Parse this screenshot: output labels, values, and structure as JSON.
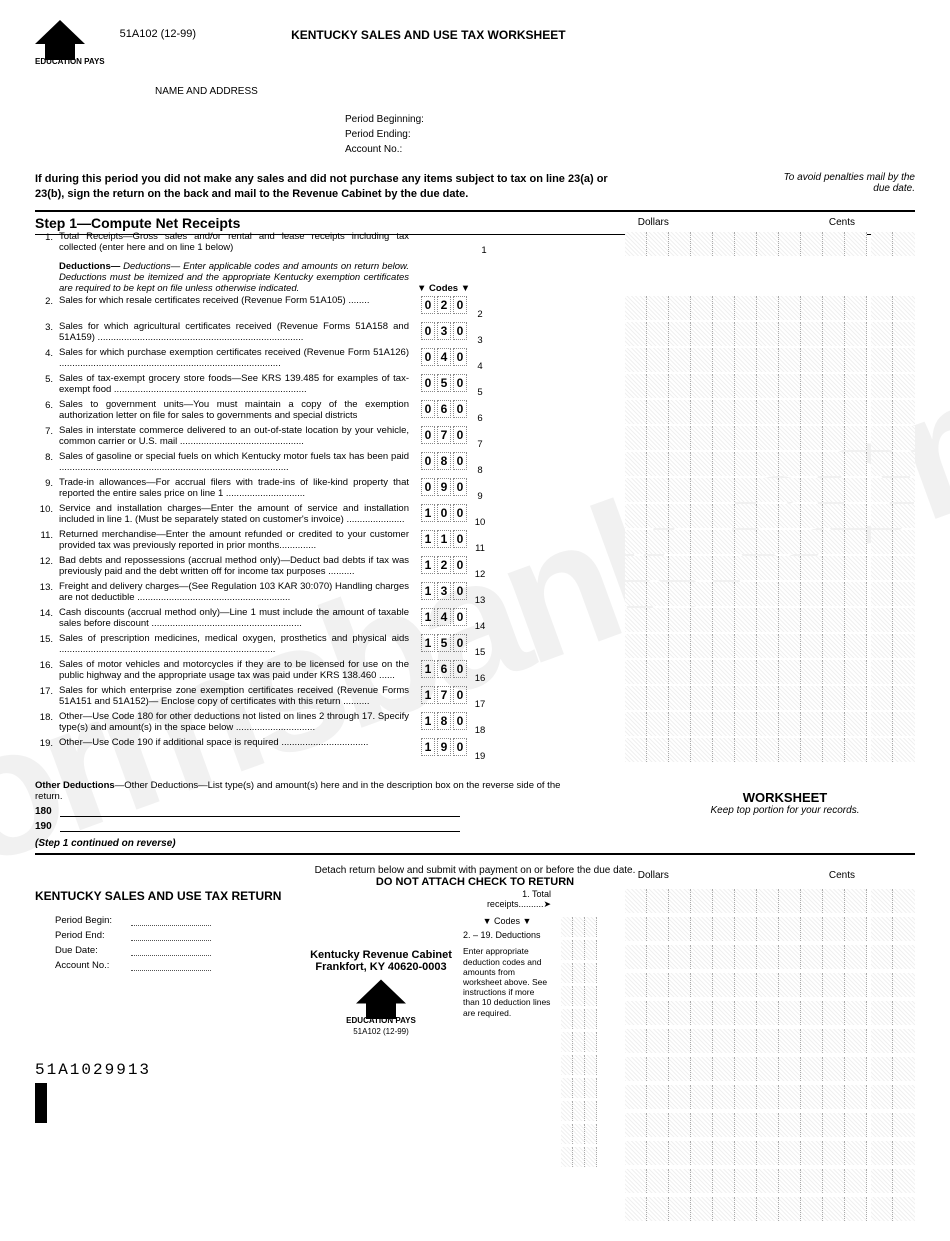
{
  "form_id": "51A102 (12-99)",
  "title": "KENTUCKY SALES AND USE TAX WORKSHEET",
  "logo_sub": "EDUCATION PAYS",
  "name_address": "NAME AND ADDRESS",
  "period_beginning": "Period Beginning:",
  "period_ending": "Period Ending:",
  "account_no": "Account No.:",
  "notice": "If during this period you did not make any sales and did not purchase any items subject to tax on line 23(a) or 23(b), sign the return on the back and mail to the Revenue Cabinet by the due date.",
  "avoid": "To avoid penalties mail by the due date.",
  "step1_header": "Step 1—Compute Net Receipts",
  "dollars": "Dollars",
  "cents": "Cents",
  "line1": {
    "num": "1.",
    "text": "Total Receipts—Gross sales and/or rental and lease receipts including tax collected (enter here and on line 1 below)",
    "rnum": "1"
  },
  "deductions_intro": "Deductions— Enter applicable codes and amounts on return below. Deductions must be itemized and the appropriate Kentucky exemption certificates are required to be kept on file unless otherwise indicated.",
  "codes_label": "▼ Codes ▼",
  "lines": [
    {
      "num": "2.",
      "text": "Sales for which resale certificates received (Revenue Form 51A105) ........",
      "code": [
        "0",
        "2",
        "0"
      ],
      "rnum": "2"
    },
    {
      "num": "3.",
      "text": "Sales for which agricultural certificates received (Revenue Forms 51A158 and 51A159) ..............................................................................",
      "code": [
        "0",
        "3",
        "0"
      ],
      "rnum": "3"
    },
    {
      "num": "4.",
      "text": "Sales for which purchase exemption certificates received (Revenue Form 51A126) ....................................................................................",
      "code": [
        "0",
        "4",
        "0"
      ],
      "rnum": "4"
    },
    {
      "num": "5.",
      "text": "Sales of tax-exempt grocery store foods—See KRS 139.485 for examples of tax-exempt food .........................................................................",
      "code": [
        "0",
        "5",
        "0"
      ],
      "rnum": "5"
    },
    {
      "num": "6.",
      "text": "Sales to government units—You must maintain a copy of the exemption authorization letter on file for sales to governments and special districts",
      "code": [
        "0",
        "6",
        "0"
      ],
      "rnum": "6"
    },
    {
      "num": "7.",
      "text": "Sales in interstate commerce delivered to an out-of-state location by your vehicle, common carrier or U.S. mail ...............................................",
      "code": [
        "0",
        "7",
        "0"
      ],
      "rnum": "7"
    },
    {
      "num": "8.",
      "text": "Sales of gasoline or special fuels on which Kentucky motor fuels tax has been paid .......................................................................................",
      "code": [
        "0",
        "8",
        "0"
      ],
      "rnum": "8"
    },
    {
      "num": "9.",
      "text": "Trade-in allowances—For accrual filers with trade-ins of like-kind property that reported the entire sales price on line 1 ..............................",
      "code": [
        "0",
        "9",
        "0"
      ],
      "rnum": "9"
    },
    {
      "num": "10.",
      "text": "Service and installation charges—Enter the amount of service and installation included in line 1. (Must be separately stated on customer's invoice) ......................",
      "code": [
        "1",
        "0",
        "0"
      ],
      "rnum": "10"
    },
    {
      "num": "11.",
      "text": "Returned merchandise—Enter the amount refunded or credited to your customer provided tax was previously reported in prior months..............",
      "code": [
        "1",
        "1",
        "0"
      ],
      "rnum": "11"
    },
    {
      "num": "12.",
      "text": "Bad debts and repossessions (accrual method only)—Deduct bad debts if tax was previously paid and the debt written off for income tax purposes ..........",
      "code": [
        "1",
        "2",
        "0"
      ],
      "rnum": "12"
    },
    {
      "num": "13.",
      "text": "Freight and delivery charges—(See Regulation 103 KAR 30:070) Handling charges are not deductible ..........................................................",
      "code": [
        "1",
        "3",
        "0"
      ],
      "rnum": "13"
    },
    {
      "num": "14.",
      "text": "Cash discounts (accrual method only)—Line 1 must include the amount of taxable sales before discount .........................................................",
      "code": [
        "1",
        "4",
        "0"
      ],
      "rnum": "14"
    },
    {
      "num": "15.",
      "text": "Sales of prescription medicines, medical oxygen, prosthetics and physical aids ..................................................................................",
      "code": [
        "1",
        "5",
        "0"
      ],
      "rnum": "15"
    },
    {
      "num": "16.",
      "text": "Sales of motor vehicles and motorcycles if they are to be licensed for use on the public highway and the appropriate usage tax was paid under KRS 138.460 ......",
      "code": [
        "1",
        "6",
        "0"
      ],
      "rnum": "16"
    },
    {
      "num": "17.",
      "text": "Sales for which enterprise zone exemption certificates received (Revenue Forms 51A151 and 51A152)— Enclose copy of certificates with this return ..........",
      "code": [
        "1",
        "7",
        "0"
      ],
      "rnum": "17"
    },
    {
      "num": "18.",
      "text": "Other—Use Code 180 for other deductions not listed on lines 2 through 17. Specify type(s) and amount(s) in the space below ..............................",
      "code": [
        "1",
        "8",
        "0"
      ],
      "rnum": "18"
    },
    {
      "num": "19.",
      "text": "Other—Use Code 190 if additional space is required .................................",
      "code": [
        "1",
        "9",
        "0"
      ],
      "rnum": "19"
    }
  ],
  "other_deductions": "Other Deductions—List type(s) and amount(s) here and in the description box on the reverse side of the return.",
  "other_180": "180",
  "other_190": "190",
  "worksheet_label": "WORKSHEET",
  "keep_top": "Keep top portion for your records.",
  "continued": "(Step 1 continued on reverse)",
  "detach_text": "Detach return below and submit with payment on or before the due date.",
  "no_attach": "DO NOT ATTACH CHECK TO RETURN",
  "return_title": "KENTUCKY SALES AND USE TAX RETURN",
  "total_receipts": "1. Total receipts..........➤",
  "codes_label_b": "▼ Codes ▼",
  "period_begin": "Period Begin:",
  "period_end": "Period End:",
  "due_date": "Due Date:",
  "account_no_b": "Account No.:",
  "deductions_range": "2. – 19. Deductions",
  "enter_note": "Enter appropriate deduction codes and amounts from worksheet above. See instructions if more than 10 deduction lines are required.",
  "barcode_num": "51A1029913",
  "cabinet_name": "Kentucky Revenue Cabinet",
  "cabinet_addr": "Frankfort, KY 40620-0003",
  "bottom_form_id": "51A102 (12-99)",
  "watermark": "formsbank.com"
}
